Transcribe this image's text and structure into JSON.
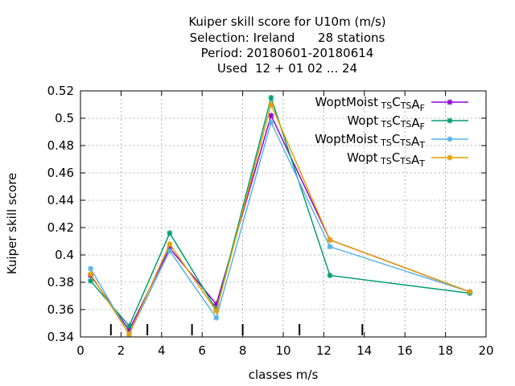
{
  "chart_data": {
    "type": "line",
    "title_lines": [
      "Kuiper skill score  for U10m (m/s)",
      "Selection: Ireland      28 stations",
      "Period: 20180601-20180614",
      "Used  12 + 01 02 ... 24"
    ],
    "xlabel": "classes m/s",
    "ylabel": "Kuiper skill score",
    "xlim": [
      0,
      20
    ],
    "ylim": [
      0.34,
      0.52
    ],
    "xticks": [
      0,
      2,
      4,
      6,
      8,
      10,
      12,
      14,
      16,
      18,
      20
    ],
    "yticks": [
      0.34,
      0.36,
      0.38,
      0.4,
      0.42,
      0.44,
      0.46,
      0.48,
      0.5,
      0.52
    ],
    "xtick_labels": [
      "0",
      "2",
      "4",
      "6",
      "8",
      "10",
      "12",
      "14",
      "16",
      "18",
      "20"
    ],
    "ytick_labels": [
      "0.34",
      "0.36",
      "0.38",
      "0.4",
      "0.42",
      "0.44",
      "0.46",
      "0.48",
      "0.5",
      "0.52"
    ],
    "grid": true,
    "legend_position": "top-right",
    "class_boundaries": [
      1.5,
      3.3,
      5.5,
      8.0,
      10.8,
      13.9
    ],
    "x": [
      0.5,
      2.4,
      4.4,
      6.7,
      9.4,
      12.3,
      19.2
    ],
    "series": [
      {
        "name": "WoptMoist TS CTS AF",
        "legend": {
          "main": "WoptMoist",
          "parts": [
            [
              "",
              "TS"
            ],
            [
              "C",
              "TS"
            ],
            [
              "A",
              "F"
            ]
          ]
        },
        "color": "#9400d3",
        "marker": "star",
        "values": [
          0.385,
          0.345,
          0.405,
          0.364,
          0.502,
          0.411,
          0.373
        ]
      },
      {
        "name": "Wopt TS CTS AF",
        "legend": {
          "main": "Wopt",
          "parts": [
            [
              "",
              "TS"
            ],
            [
              "C",
              "TS"
            ],
            [
              "A",
              "F"
            ]
          ]
        },
        "color": "#009e73",
        "marker": "star",
        "values": [
          0.381,
          0.348,
          0.416,
          0.36,
          0.515,
          0.385,
          0.372
        ]
      },
      {
        "name": "WoptMoist TS CTS AT",
        "legend": {
          "main": "WoptMoist",
          "parts": [
            [
              "",
              "TS"
            ],
            [
              "C",
              "TS"
            ],
            [
              "A",
              "T"
            ]
          ]
        },
        "color": "#56b4e9",
        "marker": "star",
        "values": [
          0.39,
          0.342,
          0.403,
          0.354,
          0.497,
          0.406,
          0.373
        ]
      },
      {
        "name": "Wopt TS CTS AT",
        "legend": {
          "main": "Wopt",
          "parts": [
            [
              "",
              "TS"
            ],
            [
              "C",
              "TS"
            ],
            [
              "A",
              "T"
            ]
          ]
        },
        "color": "#e69f00",
        "marker": "star",
        "values": [
          0.386,
          0.342,
          0.408,
          0.359,
          0.51,
          0.411,
          0.373
        ]
      }
    ]
  }
}
